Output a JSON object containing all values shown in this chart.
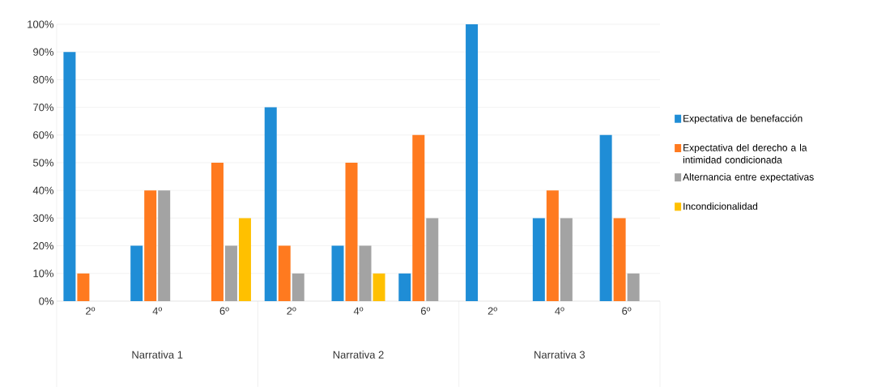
{
  "chart_data": {
    "type": "bar",
    "categories": [
      "2º",
      "4º",
      "6º",
      "2º",
      "4º",
      "6º",
      "2º",
      "4º",
      "6º"
    ],
    "series": [
      {
        "name": "Expectativa de benefacción",
        "color": "#1f8dd6",
        "values": [
          90,
          20,
          0,
          70,
          20,
          10,
          100,
          30,
          60
        ]
      },
      {
        "name": "Expectativa del derecho a la intimidad condicionada",
        "color": "#ff7a1f",
        "values": [
          10,
          40,
          50,
          20,
          50,
          60,
          0,
          40,
          30
        ]
      },
      {
        "name": "Alternancia entre expectativas",
        "color": "#a3a3a3",
        "values": [
          0,
          40,
          20,
          10,
          20,
          30,
          0,
          30,
          10
        ]
      },
      {
        "name": "Incondicionalidad",
        "color": "#ffc000",
        "values": [
          0,
          0,
          30,
          0,
          10,
          0,
          0,
          0,
          0
        ]
      }
    ],
    "ylim": [
      0,
      100
    ],
    "yticks": [
      {
        "value": 0,
        "label": "0%"
      },
      {
        "value": 10,
        "label": "10%"
      },
      {
        "value": 20,
        "label": "20%"
      },
      {
        "value": 30,
        "label": "30%"
      },
      {
        "value": 40,
        "label": "40%"
      },
      {
        "value": 50,
        "label": "50%"
      },
      {
        "value": 60,
        "label": "60%"
      },
      {
        "value": 70,
        "label": "70%"
      },
      {
        "value": 80,
        "label": "80%"
      },
      {
        "value": 90,
        "label": "90%"
      },
      {
        "value": 100,
        "label": "100%"
      }
    ],
    "annotations": [
      "Narrativa 1",
      "Narrativa 2",
      "Narrativa 3"
    ],
    "grid": "y",
    "legend": "right"
  }
}
